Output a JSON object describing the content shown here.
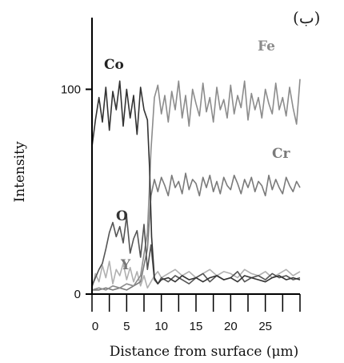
{
  "corner_label": "(ب)",
  "chart_data": {
    "type": "line",
    "title": "",
    "xlabel": "Distance from surface (μm)",
    "ylabel": "Intensity",
    "xlim": [
      0,
      30
    ],
    "ylim": [
      0,
      135
    ],
    "x_ticks": [
      0,
      5,
      10,
      15,
      20,
      25
    ],
    "y_ticks": [
      0,
      100
    ],
    "grid": false,
    "legend": "inline labels next to each trace",
    "series": [
      {
        "name": "Co",
        "color": "#333333",
        "x": [
          0,
          0.5,
          1,
          1.5,
          2,
          2.5,
          3,
          3.5,
          4,
          4.5,
          5,
          5.5,
          6,
          6.5,
          7,
          7.5,
          8,
          8.3,
          8.6,
          9,
          9.5,
          10,
          11,
          12,
          13,
          14,
          15,
          16,
          17,
          18,
          19,
          20,
          21,
          22,
          23,
          24,
          25,
          26,
          27,
          28,
          29,
          30
        ],
        "y": [
          72,
          85,
          96,
          84,
          101,
          80,
          99,
          90,
          104,
          82,
          100,
          86,
          97,
          78,
          101,
          90,
          85,
          62,
          28,
          8,
          5,
          7,
          8,
          6,
          9,
          7,
          8,
          6,
          8,
          9,
          7,
          8,
          6,
          9,
          8,
          7,
          6,
          8,
          9,
          7,
          8,
          7
        ]
      },
      {
        "name": "Fe",
        "color": "#8c8c8c",
        "x": [
          0,
          1,
          2,
          3,
          4,
          5,
          6,
          7,
          8,
          8.5,
          9,
          9.5,
          10,
          10.5,
          11,
          11.5,
          12,
          12.5,
          13,
          13.5,
          14,
          14.5,
          15,
          15.5,
          16,
          16.5,
          17,
          17.5,
          18,
          18.5,
          19,
          19.5,
          20,
          20.5,
          21,
          21.5,
          22,
          22.5,
          23,
          23.5,
          24,
          24.5,
          25,
          25.5,
          26,
          26.5,
          27,
          27.5,
          28,
          28.5,
          29,
          29.5,
          30
        ],
        "y": [
          2,
          3,
          2,
          4,
          3,
          5,
          4,
          9,
          30,
          70,
          96,
          102,
          88,
          97,
          84,
          99,
          90,
          104,
          86,
          97,
          82,
          100,
          93,
          87,
          103,
          89,
          96,
          84,
          101,
          90,
          95,
          86,
          102,
          88,
          97,
          91,
          104,
          85,
          98,
          90,
          96,
          86,
          100,
          93,
          88,
          103,
          90,
          96,
          87,
          101,
          91,
          83,
          105
        ]
      },
      {
        "name": "Cr",
        "color": "#7a7a7a",
        "x": [
          0,
          1,
          2,
          3,
          4,
          5,
          6,
          7,
          8,
          8.5,
          9,
          9.5,
          10,
          10.5,
          11,
          11.5,
          12,
          12.5,
          13,
          13.5,
          14,
          14.5,
          15,
          15.5,
          16,
          16.5,
          17,
          17.5,
          18,
          18.5,
          19,
          19.5,
          20,
          20.5,
          21,
          21.5,
          22,
          22.5,
          23,
          23.5,
          24,
          24.5,
          25,
          25.5,
          26,
          26.5,
          27,
          27.5,
          28,
          28.5,
          29,
          29.5,
          30
        ],
        "y": [
          2,
          2,
          3,
          2,
          3,
          2,
          4,
          6,
          22,
          48,
          56,
          50,
          57,
          53,
          48,
          58,
          52,
          55,
          49,
          59,
          51,
          56,
          54,
          48,
          57,
          52,
          58,
          50,
          55,
          49,
          57,
          53,
          51,
          58,
          54,
          49,
          56,
          52,
          57,
          50,
          55,
          53,
          48,
          58,
          51,
          56,
          52,
          49,
          57,
          53,
          50,
          55,
          52
        ]
      },
      {
        "name": "O",
        "color": "#555555",
        "x": [
          0,
          0.5,
          1,
          1.5,
          2,
          2.5,
          3,
          3.5,
          4,
          4.5,
          5,
          5.5,
          6,
          6.5,
          7,
          7.5,
          8,
          8.5,
          9,
          9.5,
          10,
          11,
          12,
          13,
          14,
          15,
          16,
          17,
          18,
          19,
          20,
          21,
          22,
          23,
          24,
          25,
          26,
          27,
          28,
          29,
          30
        ],
        "y": [
          4,
          8,
          12,
          15,
          22,
          30,
          35,
          28,
          33,
          25,
          38,
          20,
          27,
          31,
          18,
          34,
          12,
          24,
          7,
          5,
          8,
          6,
          9,
          7,
          5,
          8,
          10,
          6,
          9,
          7,
          8,
          11,
          6,
          8,
          9,
          7,
          10,
          8,
          9,
          7,
          8
        ]
      },
      {
        "name": "Y",
        "color": "#b0b0b0",
        "x": [
          0,
          0.5,
          1,
          1.5,
          2,
          2.5,
          3,
          3.5,
          4,
          4.5,
          5,
          5.5,
          6,
          6.5,
          7,
          7.5,
          8,
          8.5,
          9,
          9.5,
          10,
          11,
          12,
          13,
          14,
          15,
          16,
          17,
          18,
          19,
          20,
          21,
          22,
          23,
          24,
          25,
          26,
          27,
          28,
          29,
          30
        ],
        "y": [
          3,
          10,
          6,
          14,
          8,
          16,
          5,
          12,
          9,
          15,
          7,
          13,
          6,
          11,
          4,
          9,
          3,
          6,
          9,
          11,
          8,
          10,
          12,
          9,
          11,
          8,
          10,
          12,
          9,
          11,
          10,
          8,
          12,
          10,
          9,
          11,
          8,
          10,
          12,
          9,
          11
        ]
      }
    ]
  }
}
